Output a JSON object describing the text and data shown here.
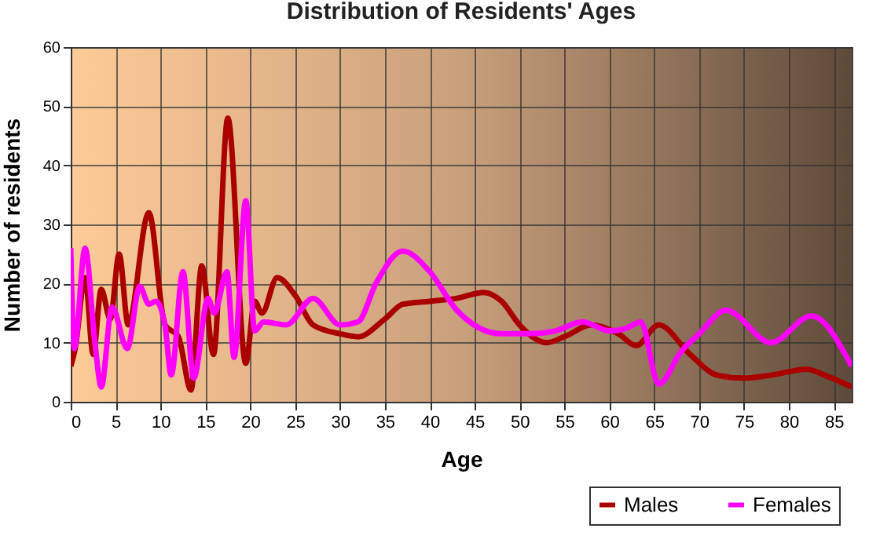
{
  "chart_data": {
    "type": "line",
    "title": "Distribution of Residents' Ages",
    "xlabel": "Age",
    "ylabel": "Number of residents",
    "xlim": [
      0,
      87
    ],
    "xticks": [
      0,
      5,
      10,
      15,
      20,
      25,
      30,
      35,
      40,
      45,
      50,
      55,
      60,
      65,
      70,
      75,
      80,
      85
    ],
    "ylim": [
      0,
      60
    ],
    "yticks": [
      0,
      10,
      20,
      30,
      40,
      50,
      60
    ],
    "grid": true,
    "legend": "bottom right",
    "series": [
      {
        "name": "Males",
        "color": "#aa0000",
        "x": [
          0,
          0.5,
          1.6,
          2.5,
          3.4,
          4.4,
          5.4,
          6.4,
          8.7,
          10.5,
          12,
          13.4,
          14.6,
          15.9,
          17.5,
          19.5,
          20.5,
          21.3,
          23,
          25,
          27,
          30,
          32,
          35,
          37,
          40,
          43,
          46,
          48,
          50,
          53,
          55,
          58,
          61,
          63,
          65.5,
          69,
          72,
          75,
          78,
          82,
          84,
          87
        ],
        "values": [
          6,
          9,
          21,
          8,
          19,
          14,
          25,
          13,
          32,
          13,
          11,
          2,
          23,
          8,
          48,
          6.5,
          17,
          15,
          21,
          18,
          13,
          11.5,
          11,
          14,
          16.5,
          17,
          17.5,
          18.5,
          17,
          13,
          10,
          11,
          13,
          11.5,
          9.5,
          13,
          8,
          4.5,
          4,
          4.5,
          5.5,
          4.5,
          2.5
        ]
      },
      {
        "name": "Females",
        "color": "#ff00ff",
        "x": [
          0,
          0.4,
          1.6,
          2.7,
          3.4,
          4.6,
          6.3,
          7.7,
          8.7,
          9.5,
          10.5,
          11.2,
          12.5,
          13.7,
          15.3,
          16,
          17.4,
          18.2,
          19.5,
          20.5,
          21.5,
          24,
          27,
          30,
          32,
          34,
          37,
          40,
          43,
          48,
          51,
          54,
          57,
          60,
          62,
          63.5,
          65.5,
          68,
          70,
          73,
          78,
          82.5,
          87
        ],
        "values": [
          26,
          9,
          26,
          10,
          2.5,
          16,
          9,
          19.5,
          16.5,
          17,
          13,
          4.5,
          22,
          4,
          17.5,
          15,
          22,
          7.5,
          34,
          12,
          13.5,
          13,
          17.5,
          13,
          13.5,
          20,
          25.5,
          22,
          15.5,
          11.5,
          11.5,
          12,
          13.5,
          12,
          12.5,
          13.5,
          3,
          8.5,
          11.5,
          15.5,
          10,
          14.5,
          6
        ]
      }
    ]
  }
}
